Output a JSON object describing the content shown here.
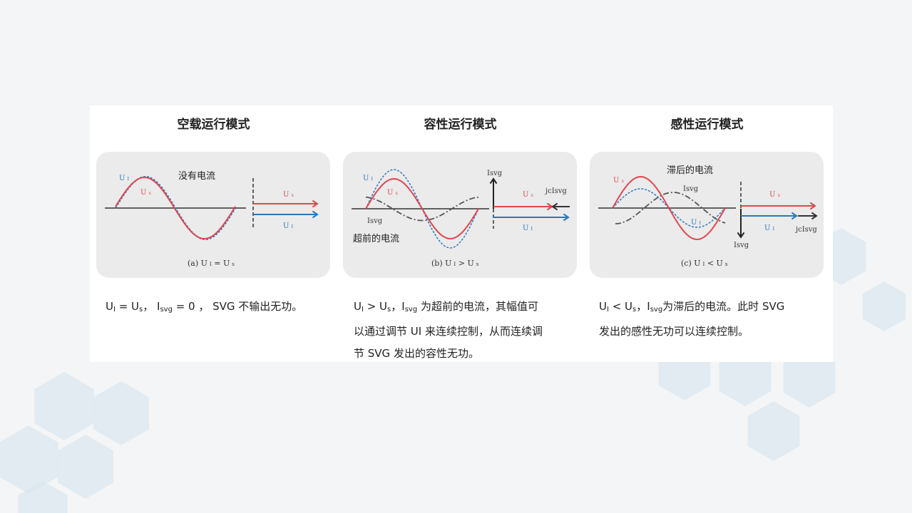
{
  "colors": {
    "us": "#e0474f",
    "ui": "#2a78c0",
    "isvg": "#555555",
    "card": "#ebebeb",
    "hex": "#d9e7ef"
  },
  "columns": [
    {
      "title": "空载运行模式",
      "diagram": {
        "note": "没有电流",
        "ui": "U",
        "ui_sub": "I",
        "us": "U",
        "us_sub": "s",
        "caption": "(a)  U",
        "caption_rest": "= U",
        "rel": "="
      },
      "caption": [
        {
          "t": "U"
        },
        {
          "s": "I"
        },
        {
          "t": " = U"
        },
        {
          "s": "s"
        },
        {
          "t": "，  I"
        },
        {
          "s": "svg"
        },
        {
          "t": " = 0  ，  SVG 不输出无功。"
        }
      ]
    },
    {
      "title": "容性运行模式",
      "diagram": {
        "note": "超前的电流",
        "ui": "U",
        "ui_sub": "I",
        "us": "U",
        "us_sub": "s",
        "isvg": "Isvg",
        "jx": "jcIsvg",
        "caption": "(b)  U",
        "rel": ">"
      },
      "caption": [
        {
          "t": "U"
        },
        {
          "s": "I"
        },
        {
          "t": "  > U"
        },
        {
          "s": "s"
        },
        {
          "t": "，I"
        },
        {
          "s": "svg"
        },
        {
          "t": " 为超前的电流，其幅值可"
        },
        {
          "br": 1
        },
        {
          "t": "以通过调节 UI 来连续控制，从而连续调"
        },
        {
          "br": 1
        },
        {
          "t": "节 SVG 发出的容性无功。"
        }
      ]
    },
    {
      "title": "感性运行模式",
      "diagram": {
        "note": "滞后的电流",
        "ui": "U",
        "ui_sub": "I",
        "us": "U",
        "us_sub": "s",
        "isvg": "Isvg",
        "jx": "jcIsvg",
        "caption": "(c)  U",
        "rel": "<"
      },
      "caption": [
        {
          "t": "U"
        },
        {
          "s": "I"
        },
        {
          "t": "  <   U"
        },
        {
          "s": "s"
        },
        {
          "t": "，I"
        },
        {
          "s": "svg"
        },
        {
          "t": "为滞后的电流。此时 SVG"
        },
        {
          "br": 1
        },
        {
          "t": "发出的感性无功可以连续控制。"
        }
      ]
    }
  ]
}
